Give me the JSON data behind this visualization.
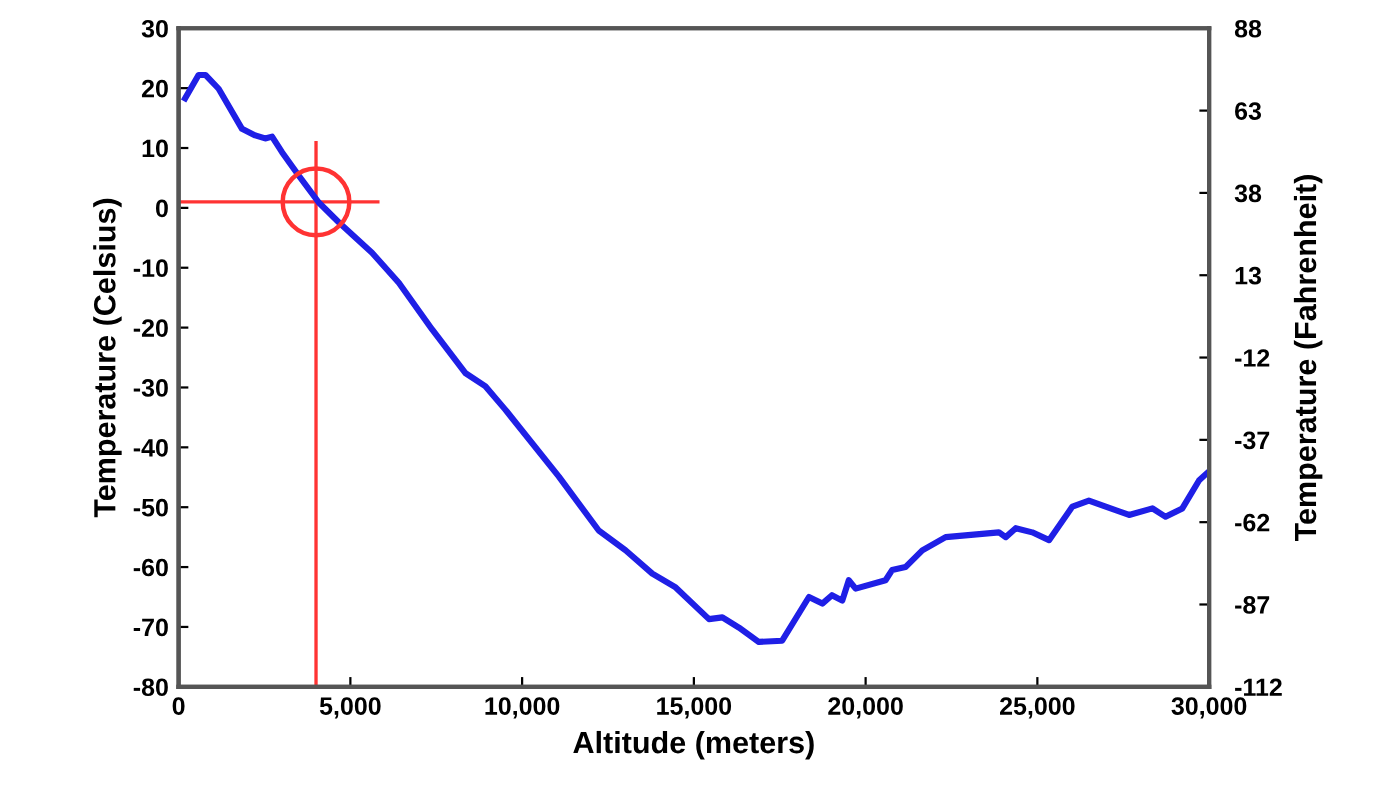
{
  "chart_data": {
    "type": "line",
    "xlabel": "Altitude (meters)",
    "ylabel": "Temperature (Celsius)",
    "y2label": "Temperature (Fahrenheit)",
    "series": [
      {
        "color": "#1f1fe6",
        "x": [
          190,
          580,
          780,
          1165,
          1845,
          2230,
          2520,
          2720,
          3010,
          3495,
          4080,
          4660,
          5630,
          6410,
          7380,
          8350,
          8930,
          9510,
          11070,
          12230,
          13010,
          13790,
          14470,
          15440,
          15830,
          16310,
          16890,
          17570,
          18350,
          18740,
          19020,
          19320,
          19510,
          19710,
          20580,
          20770,
          21160,
          21650,
          22330,
          23880,
          24080,
          24370,
          24850,
          25340,
          26020,
          26500,
          27670,
          28350,
          28730,
          29220,
          29710,
          30000
        ],
        "values": [
          18.3,
          22.2,
          22.2,
          19.9,
          13.2,
          12.1,
          11.6,
          11.9,
          9.3,
          5.4,
          0.9,
          -2.4,
          -7.5,
          -12.5,
          -20.3,
          -27.6,
          -29.8,
          -33.7,
          -44.9,
          -53.9,
          -57.2,
          -61.1,
          -63.4,
          -68.7,
          -68.4,
          -70.1,
          -72.5,
          -72.3,
          -65.0,
          -66.1,
          -64.7,
          -65.6,
          -62.2,
          -63.6,
          -62.2,
          -60.5,
          -60.0,
          -57.2,
          -55.0,
          -54.2,
          -55.0,
          -53.5,
          -54.2,
          -55.5,
          -49.9,
          -48.9,
          -51.3,
          -50.2,
          -51.6,
          -50.2,
          -45.5,
          -44.0
        ]
      }
    ],
    "xlim": [
      0,
      30000
    ],
    "xticks": [
      0,
      {
        "value": 5000,
        "label": "5,000"
      },
      {
        "value": 10000,
        "label": "10,000"
      },
      {
        "value": 15000,
        "label": "15,000"
      },
      {
        "value": 20000,
        "label": "20,000"
      },
      {
        "value": 25000,
        "label": "25,000"
      },
      {
        "value": 30000,
        "label": "30,000"
      }
    ],
    "ylim": [
      -80,
      30
    ],
    "yticks": [
      -80,
      -70,
      -60,
      -50,
      -40,
      -30,
      -20,
      -10,
      0,
      10,
      20,
      30
    ],
    "y2lim": [
      -112,
      88
    ],
    "y2ticks": [
      -112,
      -87,
      -62,
      -37,
      -12,
      13,
      38,
      63,
      88
    ],
    "ref_lines": [
      {
        "axis": "x",
        "value": 4000,
        "color": "#ff3333"
      },
      {
        "axis": "y",
        "value": 1,
        "color": "#ff3333"
      }
    ],
    "grid": false,
    "marker": "none",
    "line_style": "solid"
  }
}
